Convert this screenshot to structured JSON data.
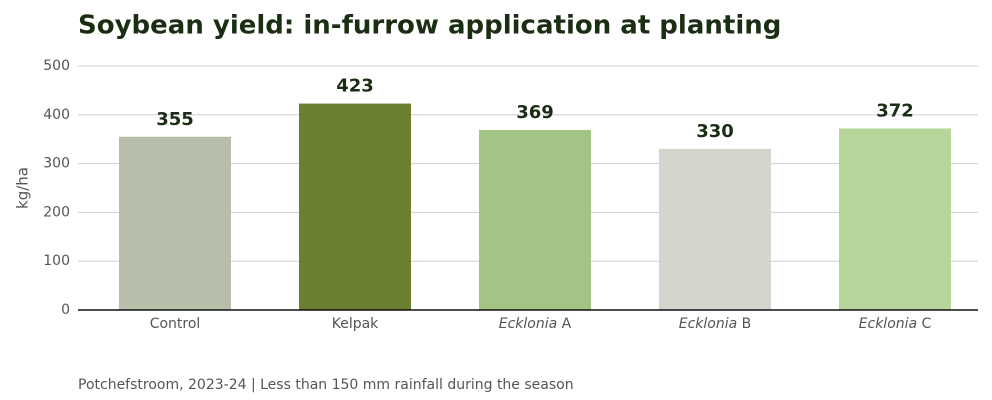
{
  "chart_data": {
    "type": "bar",
    "title": "Soybean yield: in-furrow application at planting",
    "ylabel": "kg/ha",
    "footnote": "Potchefstroom, 2023-24 | Less than 150 mm rainfall during the season",
    "categories": [
      "Control",
      "Kelpak",
      "Ecklonia A",
      "Ecklonia B",
      "Ecklonia C"
    ],
    "category_italic_first_word": [
      false,
      false,
      true,
      true,
      true
    ],
    "values": [
      355,
      423,
      369,
      330,
      372
    ],
    "colors": [
      "#b7bfaa",
      "#6a7f30",
      "#a3c485",
      "#d4d5cd",
      "#b5d59a"
    ],
    "ylim": [
      0,
      500
    ],
    "yticks": [
      0,
      100,
      200,
      300,
      400,
      500
    ],
    "grid": true
  }
}
